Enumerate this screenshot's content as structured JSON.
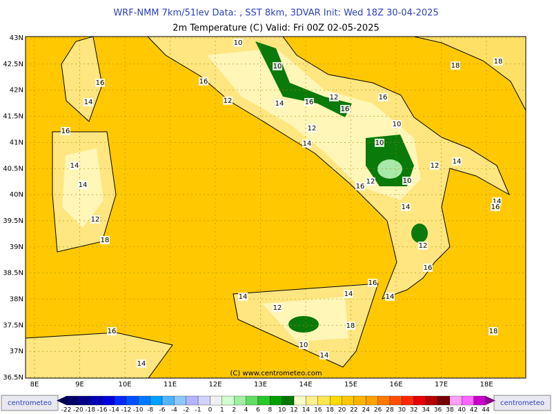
{
  "header": {
    "title": "WRF-NMM 7km/51lev  Data: , SST 8km, 3DVAR  Init: Wed 18Z 30-04-2025",
    "subtitle": "2m Temperature (C)  Valid: Fri 00Z 02-05-2025"
  },
  "lat_labels": [
    "43N",
    "42.5N",
    "42N",
    "41.5N",
    "41N",
    "40.5N",
    "40N",
    "39.5N",
    "39N",
    "38.5N",
    "38N",
    "37.5N",
    "37N",
    "36.5N"
  ],
  "lon_labels": [
    "8E",
    "9E",
    "10E",
    "11E",
    "12E",
    "13E",
    "14E",
    "15E",
    "16E",
    "17E",
    "18E"
  ],
  "contour_labels": [
    "10",
    "10",
    "18",
    "18",
    "16",
    "14",
    "16",
    "12",
    "14",
    "16",
    "12",
    "16",
    "16",
    "12",
    "10",
    "16",
    "14",
    "10",
    "14",
    "12",
    "14",
    "14",
    "16",
    "12",
    "10",
    "14",
    "14",
    "16",
    "12",
    "18",
    "12",
    "16",
    "16",
    "14",
    "14",
    "14",
    "12",
    "18",
    "18",
    "16",
    "10",
    "14",
    "14"
  ],
  "copyright": "(C) www.centrometeo.com",
  "logo": "centrometeo",
  "colorbar": {
    "labels": [
      -22,
      -20,
      -18,
      -16,
      -14,
      -12,
      -10,
      -8,
      -6,
      -4,
      -2,
      -1,
      0,
      1,
      2,
      4,
      6,
      8,
      10,
      12,
      14,
      16,
      18,
      20,
      22,
      24,
      26,
      28,
      30,
      32,
      34,
      36,
      38,
      40,
      42,
      44
    ],
    "colors": [
      "#000066",
      "#00008c",
      "#0000b4",
      "#0000dc",
      "#0028ff",
      "#0050ff",
      "#0078ff",
      "#00a0ff",
      "#50b4ff",
      "#8cc8ff",
      "#b4b4ff",
      "#d2d2ff",
      "#f0f0f0",
      "#d2ffd2",
      "#a0f0a0",
      "#64dc64",
      "#28c828",
      "#00a000",
      "#007800",
      "#ffffc8",
      "#fff08c",
      "#ffe650",
      "#ffdc00",
      "#ffc800",
      "#ffb400",
      "#ffa000",
      "#ff7800",
      "#ff5000",
      "#ff2800",
      "#e60000",
      "#b40000",
      "#780000",
      "#ffa0ff",
      "#ff64ff",
      "#c800c8"
    ],
    "under_color": "#000050",
    "over_color": "#8c008c"
  }
}
